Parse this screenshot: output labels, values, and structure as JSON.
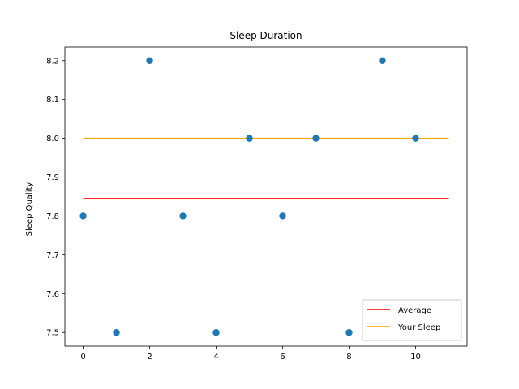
{
  "chart_data": {
    "type": "scatter",
    "title": "Sleep Duration",
    "xlabel": "",
    "ylabel": "Sleep Quality",
    "xlim": [
      -0.55,
      11.55
    ],
    "ylim": [
      7.465,
      8.235
    ],
    "xticks": [
      "0",
      "2",
      "4",
      "6",
      "8",
      "10"
    ],
    "yticks": [
      "7.5",
      "7.6",
      "7.7",
      "7.8",
      "7.9",
      "8.0",
      "8.1",
      "8.2"
    ],
    "grid": false,
    "legend_position": "lower-right",
    "series": [
      {
        "type": "scatter",
        "color": "#1f77b4",
        "x": [
          0,
          1,
          2,
          3,
          4,
          5,
          6,
          7,
          8,
          9,
          10
        ],
        "y": [
          7.8,
          7.5,
          8.2,
          7.8,
          7.5,
          8.0,
          7.8,
          8.0,
          7.5,
          8.2,
          8.0
        ]
      },
      {
        "name": "Average",
        "type": "line",
        "color": "#ff0000",
        "x": [
          0,
          11
        ],
        "y": [
          7.845,
          7.845
        ]
      },
      {
        "name": "Your Sleep",
        "type": "line",
        "color": "#ffa500",
        "x": [
          0,
          11
        ],
        "y": [
          8.0,
          8.0
        ]
      }
    ]
  }
}
